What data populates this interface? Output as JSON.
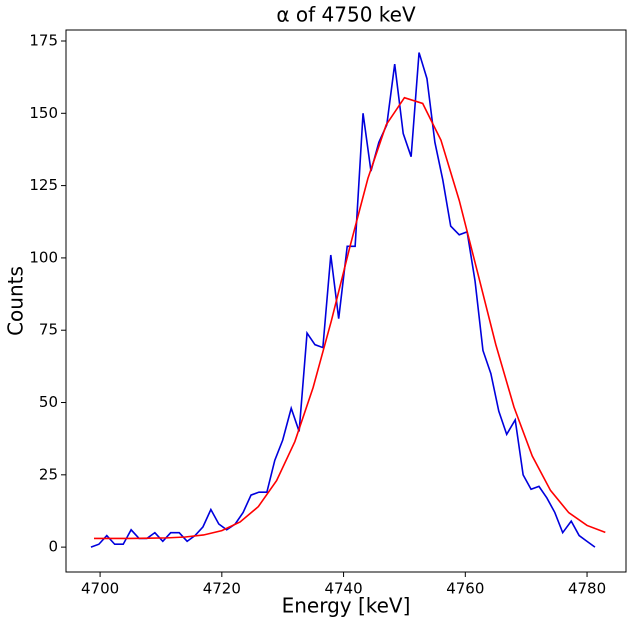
{
  "chart_data": {
    "type": "line",
    "title": "α of 4750 keV",
    "x_label": "Energy [keV]",
    "y_label": "Counts",
    "xlim": [
      4694.4,
      4786.4
    ],
    "ylim": [
      -8.6,
      178.8
    ],
    "xticks": [
      4700,
      4720,
      4740,
      4760,
      4780
    ],
    "yticks": [
      0,
      25,
      50,
      75,
      100,
      125,
      150,
      175
    ],
    "grid": false,
    "series": [
      {
        "color": "#0000dd",
        "x": [
          4698.5,
          4699.8,
          4701.1,
          4702.4,
          4703.8,
          4705.1,
          4706.4,
          4707.7,
          4709.0,
          4710.3,
          4711.6,
          4713.0,
          4714.3,
          4715.6,
          4716.9,
          4718.2,
          4719.5,
          4720.8,
          4722.2,
          4723.5,
          4724.8,
          4726.1,
          4727.4,
          4728.7,
          4730.0,
          4731.4,
          4732.7,
          4734.0,
          4735.3,
          4736.6,
          4737.9,
          4739.2,
          4740.6,
          4741.9,
          4743.2,
          4744.5,
          4745.8,
          4747.1,
          4748.4,
          4749.8,
          4751.1,
          4752.4,
          4753.7,
          4755.0,
          4756.3,
          4757.6,
          4759.0,
          4760.3,
          4761.6,
          4762.9,
          4764.2,
          4765.5,
          4766.8,
          4768.2,
          4769.5,
          4770.8,
          4772.1,
          4773.4,
          4774.7,
          4776.0,
          4777.4,
          4778.7,
          4780.0,
          4781.3
        ],
        "values": [
          0,
          1,
          4,
          1,
          1,
          6,
          3,
          3,
          5,
          2,
          5,
          5,
          2,
          4,
          7,
          13,
          8,
          6,
          8,
          12,
          18,
          19,
          19,
          30,
          37,
          48,
          40,
          74,
          70,
          69,
          101,
          79,
          104,
          104,
          150,
          130,
          140,
          146,
          167,
          143,
          135,
          171,
          162,
          140,
          127,
          111,
          108,
          109,
          92,
          68,
          60,
          47,
          39,
          44,
          25,
          20,
          21,
          17,
          12,
          5,
          9,
          4,
          2,
          0
        ]
      },
      {
        "color": "#ff0000",
        "x": [
          4699,
          4702,
          4705,
          4708,
          4711,
          4714,
          4717,
          4720,
          4723,
          4726,
          4729,
          4732,
          4735,
          4738,
          4741,
          4744,
          4747,
          4750,
          4753,
          4756,
          4759,
          4762,
          4765,
          4768,
          4771,
          4774,
          4777,
          4780,
          4783
        ],
        "values": [
          3.0,
          3.0,
          3.0,
          3.1,
          3.2,
          3.5,
          4.2,
          5.7,
          8.7,
          14.0,
          23.0,
          36.5,
          55.2,
          78.3,
          103.5,
          127.5,
          146.0,
          155.4,
          153.4,
          140.7,
          119.9,
          95.1,
          70.1,
          48.4,
          31.5,
          19.6,
          11.9,
          7.5,
          5.1
        ]
      }
    ]
  }
}
